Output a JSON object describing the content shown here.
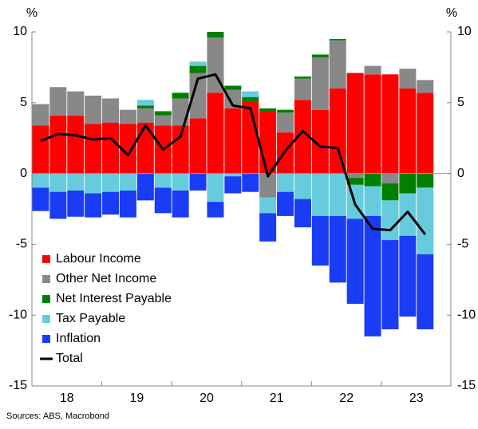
{
  "chart_data": {
    "type": "stacked-bar-line",
    "y_unit_left": "%",
    "y_unit_right": "%",
    "source": "Sources: ABS, Macrobond",
    "year_labels": [
      "18",
      "19",
      "20",
      "21",
      "22",
      "23"
    ],
    "quarters_per_label": 4,
    "ylim": [
      -15,
      10
    ],
    "yticks": [
      -15,
      -10,
      -5,
      0,
      5,
      10
    ],
    "y2lim": [
      -15,
      10
    ],
    "y2ticks": [
      -15,
      -10,
      -5,
      0,
      5,
      10
    ],
    "legend": "lower left",
    "series": [
      {
        "name": "Labour Income",
        "color": "#ff0000",
        "values": [
          3.4,
          4.1,
          4.1,
          3.5,
          3.6,
          3.5,
          3.6,
          3.4,
          3.4,
          3.9,
          5.7,
          4.6,
          5.1,
          4.4,
          2.9,
          5.2,
          4.5,
          6.0,
          7.1,
          7.0,
          7.0,
          6.0,
          5.7
        ]
      },
      {
        "name": "Other Net Income",
        "color": "#888888",
        "values": [
          1.5,
          2.0,
          1.7,
          2.0,
          1.7,
          1.0,
          1.0,
          0.7,
          1.9,
          3.2,
          3.9,
          1.3,
          0,
          -1.7,
          1.4,
          1.5,
          3.7,
          3.4,
          -0.3,
          0.6,
          -0.7,
          1.4,
          0.9
        ]
      },
      {
        "name": "Net Interest Payable",
        "color": "#008000",
        "values": [
          0,
          0,
          0,
          0,
          0,
          0,
          0.2,
          0.3,
          0.4,
          0.5,
          0.4,
          0.3,
          0.3,
          0.2,
          0.2,
          0.15,
          0.2,
          0.1,
          -0.5,
          -0.9,
          -1.2,
          -1.4,
          -1.0
        ]
      },
      {
        "name": "Tax Payable",
        "color": "#66ccdd",
        "values": [
          -1.0,
          -1.3,
          -1.2,
          -1.4,
          -1.3,
          -1.2,
          0.4,
          -1.0,
          -1.2,
          0.3,
          -2.0,
          -0.2,
          0.4,
          -1.1,
          -1.3,
          -1.8,
          -3.0,
          -3.0,
          -2.4,
          -2.1,
          -2.8,
          -3.0,
          -4.7
        ]
      },
      {
        "name": "Inflation",
        "color": "#1a3cf5",
        "values": [
          -1.65,
          -1.9,
          -1.85,
          -1.7,
          -1.6,
          -1.9,
          -1.9,
          -1.8,
          -1.9,
          -1.2,
          -1.1,
          -1.2,
          -1.3,
          -2.0,
          -1.7,
          -2.0,
          -3.5,
          -4.7,
          -6.0,
          -8.5,
          -6.3,
          -5.7,
          -5.3
        ]
      },
      {
        "name": "Total",
        "color": "#000000",
        "line": true,
        "values": [
          2.3,
          2.8,
          2.7,
          2.4,
          2.5,
          1.3,
          3.4,
          1.7,
          2.6,
          6.7,
          7.0,
          4.8,
          4.6,
          -0.2,
          1.6,
          3.0,
          1.9,
          1.8,
          -2.2,
          -3.9,
          -4.0,
          -2.7,
          -4.3
        ]
      }
    ]
  }
}
